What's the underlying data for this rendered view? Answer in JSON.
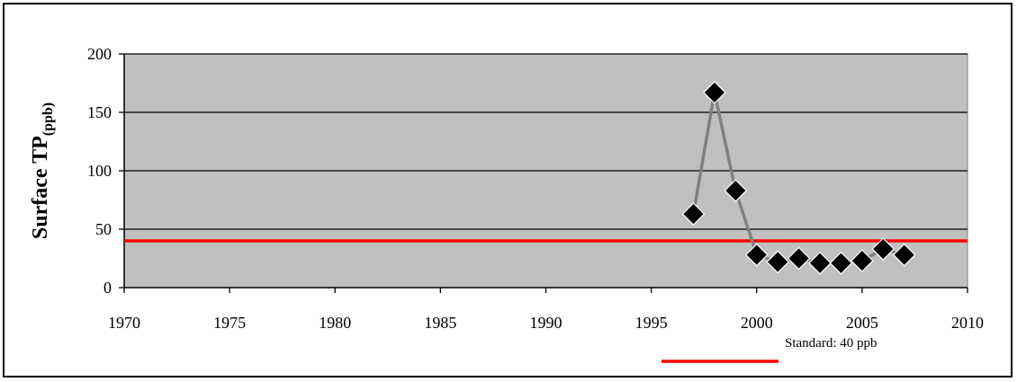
{
  "chart_data": {
    "type": "line",
    "title": "",
    "xlabel": "",
    "ylabel": "Surface TP",
    "ylabel_sub": "(ppb)",
    "xlim": [
      1970,
      2010
    ],
    "ylim": [
      0,
      200
    ],
    "x_ticks": [
      1970,
      1975,
      1980,
      1985,
      1990,
      1995,
      2000,
      2005,
      2010
    ],
    "y_ticks": [
      0,
      50,
      100,
      150,
      200
    ],
    "grid": true,
    "plot_background": "#c0c0c0",
    "series": [
      {
        "type": "line-markers",
        "color": "#808080",
        "marker_color": "#000000",
        "marker": "diamond",
        "x": [
          1997,
          1998,
          1999,
          2000,
          2001,
          2002,
          2003,
          2004,
          2005,
          2006,
          2007
        ],
        "y": [
          63,
          167,
          83,
          28,
          22,
          25,
          21,
          21,
          23,
          33,
          28
        ]
      }
    ],
    "reference_line": {
      "value": 40,
      "color": "#ff0000",
      "label": "Standard: 40 ppb"
    },
    "legend_position": "bottom-center"
  }
}
